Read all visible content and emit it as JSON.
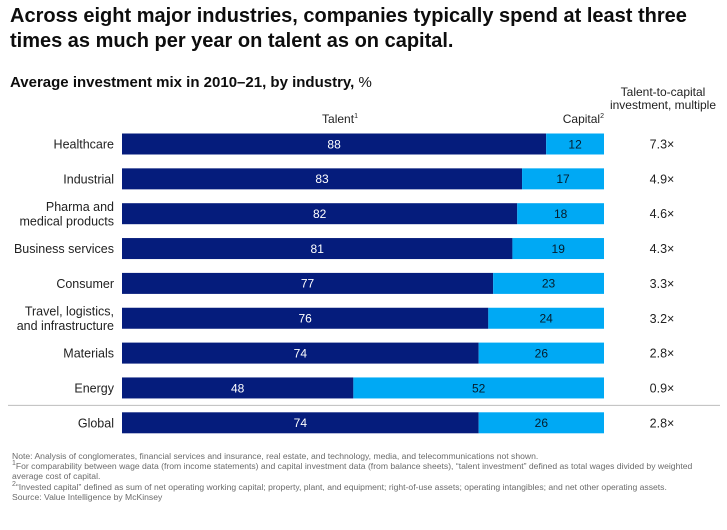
{
  "title": "Across eight major industries, companies typically spend at least three times as much per year on talent as on capital.",
  "chart_data": {
    "type": "bar",
    "orientation": "horizontal",
    "stacked": true,
    "title": "Average investment mix in 2010–21, by industry,",
    "unit": "%",
    "categories": [
      [
        "Healthcare"
      ],
      [
        "Industrial"
      ],
      [
        "Pharma and",
        "medical products"
      ],
      [
        "Business services"
      ],
      [
        "Consumer"
      ],
      [
        "Travel, logistics,",
        "and infrastructure"
      ],
      [
        "Materials"
      ],
      [
        "Energy"
      ],
      [
        "Global"
      ]
    ],
    "series": [
      {
        "name": "Talent",
        "footnote": "1",
        "color": "#051c7c",
        "label_color": "#ffffff",
        "values": [
          88,
          83,
          82,
          81,
          77,
          76,
          74,
          48,
          74
        ]
      },
      {
        "name": "Capital",
        "footnote": "2",
        "color": "#00a9f4",
        "label_color": "#051c2c",
        "values": [
          12,
          17,
          18,
          19,
          23,
          24,
          26,
          52,
          26
        ]
      }
    ],
    "multiple": {
      "header": "Talent-to-capital investment, multiple",
      "values": [
        "7.3×",
        "4.9×",
        "4.6×",
        "4.3×",
        "3.3×",
        "3.2×",
        "2.8×",
        "0.9×",
        "2.8×"
      ]
    },
    "xlim": [
      0,
      100
    ],
    "divider_before_index": 8
  },
  "notes": [
    {
      "sup": "",
      "text": "Note: Analysis of conglomerates, financial services and insurance, real estate, and technology, media, and telecommunications not shown."
    },
    {
      "sup": "1",
      "text": "For comparability between wage data (from income statements) and capital investment data (from balance sheets), “talent investment” defined as total wages divided by weighted average cost of capital."
    },
    {
      "sup": "2",
      "text": "“Invested capital” defined as sum of net operating working capital; property, plant, and equipment; right-of-use assets; operating intangibles; and net other operating assets."
    },
    {
      "sup": "",
      "text": "Source: Value Intelligence by McKinsey"
    }
  ]
}
